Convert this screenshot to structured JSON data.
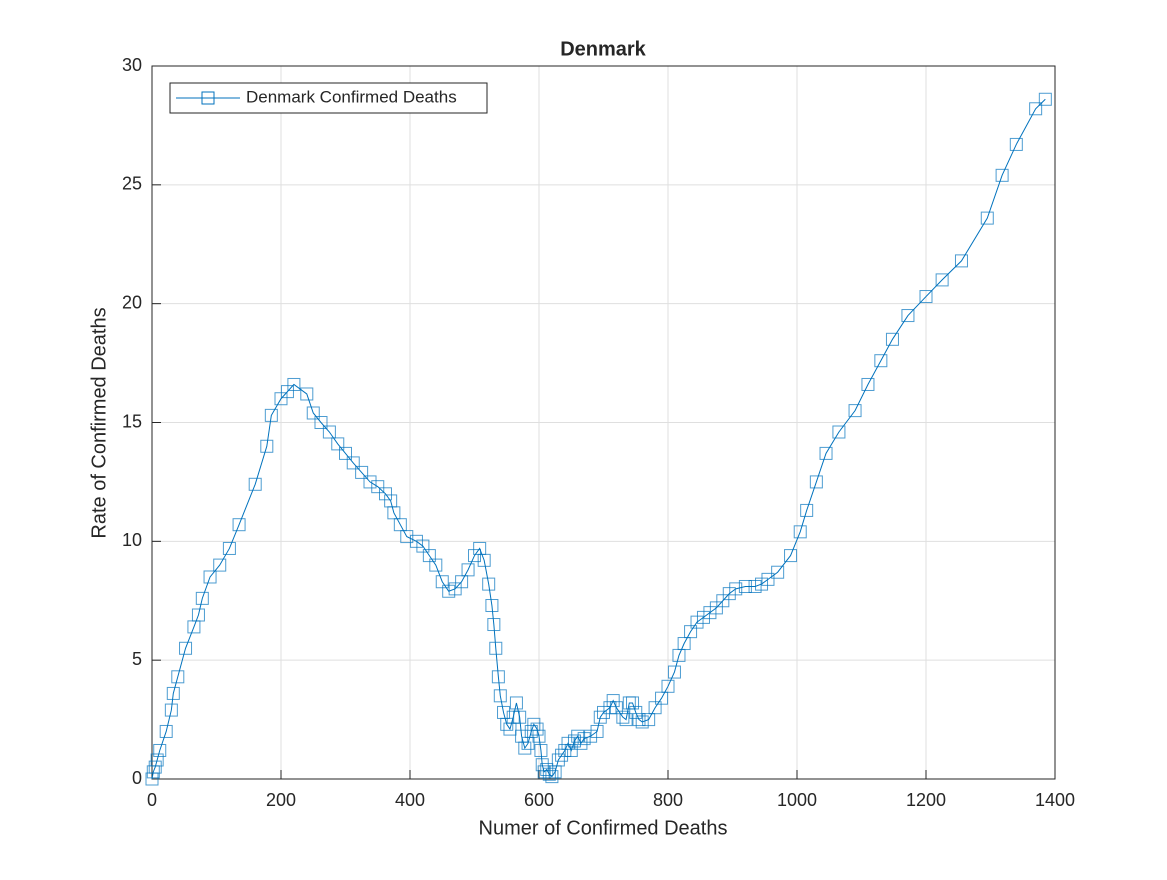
{
  "chart_data": {
    "type": "line",
    "title": "Denmark",
    "x_label": "Numer of Confirmed Deaths",
    "y_label": "Rate of Confirmed Deaths",
    "x": [
      0,
      2,
      5,
      8,
      12,
      22,
      30,
      33,
      40,
      52,
      65,
      72,
      78,
      90,
      105,
      120,
      135,
      160,
      178,
      185,
      200,
      210,
      220,
      240,
      250,
      262,
      275,
      288,
      300,
      312,
      325,
      338,
      350,
      362,
      370,
      375,
      385,
      395,
      410,
      420,
      430,
      440,
      450,
      460,
      470,
      480,
      490,
      500,
      508,
      515,
      522,
      527,
      530,
      533,
      537,
      540,
      545,
      550,
      555,
      560,
      565,
      570,
      573,
      578,
      583,
      588,
      592,
      597,
      600,
      603,
      605,
      608,
      612,
      616,
      620,
      625,
      630,
      635,
      640,
      645,
      650,
      655,
      660,
      665,
      670,
      680,
      690,
      695,
      700,
      710,
      715,
      720,
      730,
      735,
      740,
      745,
      750,
      755,
      760,
      770,
      780,
      790,
      800,
      810,
      817,
      825,
      835,
      845,
      855,
      865,
      875,
      885,
      895,
      905,
      920,
      935,
      945,
      955,
      970,
      990,
      1005,
      1015,
      1030,
      1045,
      1065,
      1090,
      1110,
      1130,
      1148,
      1172,
      1200,
      1225,
      1255,
      1295,
      1318,
      1340,
      1370,
      1385
    ],
    "series": [
      {
        "name": "Denmark Confirmed Deaths",
        "color": "#0072bd",
        "values": [
          0,
          0.3,
          0.5,
          0.8,
          1.2,
          2,
          2.9,
          3.6,
          4.3,
          5.5,
          6.4,
          6.9,
          7.6,
          8.5,
          9,
          9.7,
          10.7,
          12.4,
          14,
          15.3,
          16,
          16.3,
          16.6,
          16.2,
          15.4,
          15,
          14.6,
          14.1,
          13.7,
          13.3,
          12.9,
          12.5,
          12.3,
          12,
          11.7,
          11.2,
          10.7,
          10.2,
          10,
          9.8,
          9.4,
          9,
          8.3,
          7.9,
          8,
          8.3,
          8.8,
          9.4,
          9.7,
          9.2,
          8.2,
          7.3,
          6.5,
          5.5,
          4.3,
          3.5,
          2.8,
          2.3,
          2.1,
          2.6,
          3.2,
          2.6,
          1.8,
          1.3,
          1.5,
          2,
          2.3,
          2.1,
          1.8,
          1.2,
          0.6,
          0.3,
          0.4,
          0.2,
          0.1,
          0.3,
          0.8,
          1,
          1.2,
          1.5,
          1.2,
          1.6,
          1.8,
          1.5,
          1.7,
          1.8,
          2,
          2.6,
          2.8,
          3,
          3.3,
          3,
          2.6,
          2.5,
          3.2,
          3.2,
          2.8,
          2.5,
          2.4,
          2.5,
          3,
          3.4,
          3.9,
          4.5,
          5.2,
          5.7,
          6.2,
          6.6,
          6.8,
          7,
          7.2,
          7.5,
          7.8,
          8,
          8.1,
          8.1,
          8.2,
          8.4,
          8.7,
          9.4,
          10.4,
          11.3,
          12.5,
          13.7,
          14.6,
          15.5,
          16.6,
          17.6,
          18.5,
          19.5,
          20.3,
          21,
          21.8,
          23.6,
          25.4,
          26.7,
          28.2,
          28.6
        ]
      }
    ],
    "xlim": [
      0,
      1400
    ],
    "xticks": [
      0,
      200,
      400,
      600,
      800,
      1000,
      1200,
      1400
    ],
    "ylim": [
      0,
      30
    ],
    "yticks": [
      0,
      5,
      10,
      15,
      20,
      25,
      30
    ],
    "grid": true,
    "legend": "northwest",
    "marker": "square"
  }
}
